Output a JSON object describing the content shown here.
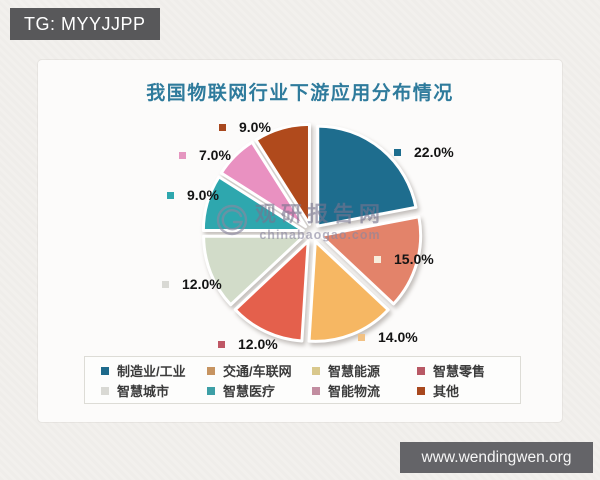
{
  "page": {
    "tg_badge": "TG: MYYJJPP",
    "site_badge": "www.wendingwen.org"
  },
  "watermark": {
    "name": "观研报告网",
    "domain": "chinabaogao.com"
  },
  "chart_data": {
    "type": "pie",
    "title": "我国物联网行业下游应用分布情况",
    "title_color": "#2f7b9c",
    "legend_position": "bottom",
    "start_angle_deg": 0,
    "direction": "clockwise",
    "total": 100,
    "slices": [
      {
        "label": "制造业/工业",
        "value": 22.0,
        "display": "22.0%",
        "color": "#1e6d8e",
        "legend_color": "#1e6a8b",
        "pct_marker_color": "#1e6d8e"
      },
      {
        "label": "交通/车联网",
        "value": 15.0,
        "display": "15.0%",
        "color": "#e3836a",
        "legend_color": "#c79461",
        "pct_marker_color": "#f7eedd"
      },
      {
        "label": "智慧能源",
        "value": 14.0,
        "display": "14.0%",
        "color": "#f6b763",
        "legend_color": "#d9c88c",
        "pct_marker_color": "#f2c183"
      },
      {
        "label": "智慧零售",
        "value": 12.0,
        "display": "12.0%",
        "color": "#e4604c",
        "legend_color": "#b85965",
        "pct_marker_color": "#bf5765"
      },
      {
        "label": "智慧城市",
        "value": 12.0,
        "display": "12.0%",
        "color": "#d2dcc9",
        "legend_color": "#d9d9d4",
        "pct_marker_color": "#d9d9d4"
      },
      {
        "label": "智慧医疗",
        "value": 9.0,
        "display": "9.0%",
        "color": "#2ea7ae",
        "legend_color": "#3d9fa6",
        "pct_marker_color": "#2ea7ae"
      },
      {
        "label": "智能物流",
        "value": 7.0,
        "display": "7.0%",
        "color": "#e991c1",
        "legend_color": "#c28da0",
        "pct_marker_color": "#e596c0"
      },
      {
        "label": "其他",
        "value": 9.0,
        "display": "9.0%",
        "color": "#b04a1c",
        "legend_color": "#a8481e",
        "pct_marker_color": "#a8481e"
      }
    ]
  }
}
